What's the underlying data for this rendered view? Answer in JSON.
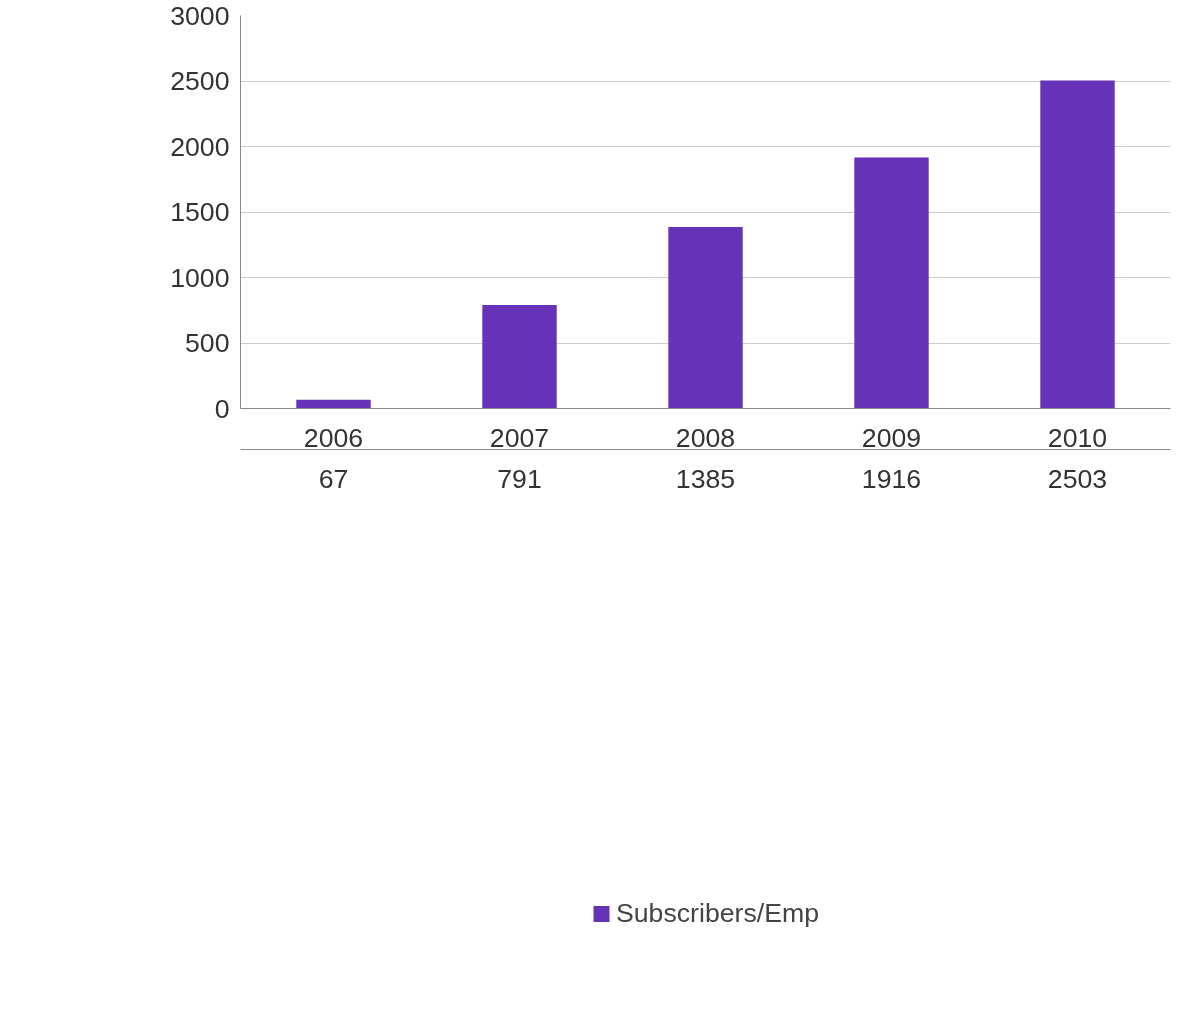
{
  "chart_data": {
    "type": "bar",
    "categories": [
      "2006",
      "2007",
      "2008",
      "2009",
      "2010"
    ],
    "series": [
      {
        "name": "Subscribers/Emp",
        "color": "#6633b8",
        "values": [
          67,
          791,
          1385,
          1916,
          2503
        ]
      }
    ],
    "ylim": [
      0,
      3000
    ],
    "yticks": [
      0,
      500,
      1000,
      1500,
      2000,
      2500,
      3000
    ],
    "grid": "y",
    "legend": "bottom",
    "data_labels": true
  }
}
